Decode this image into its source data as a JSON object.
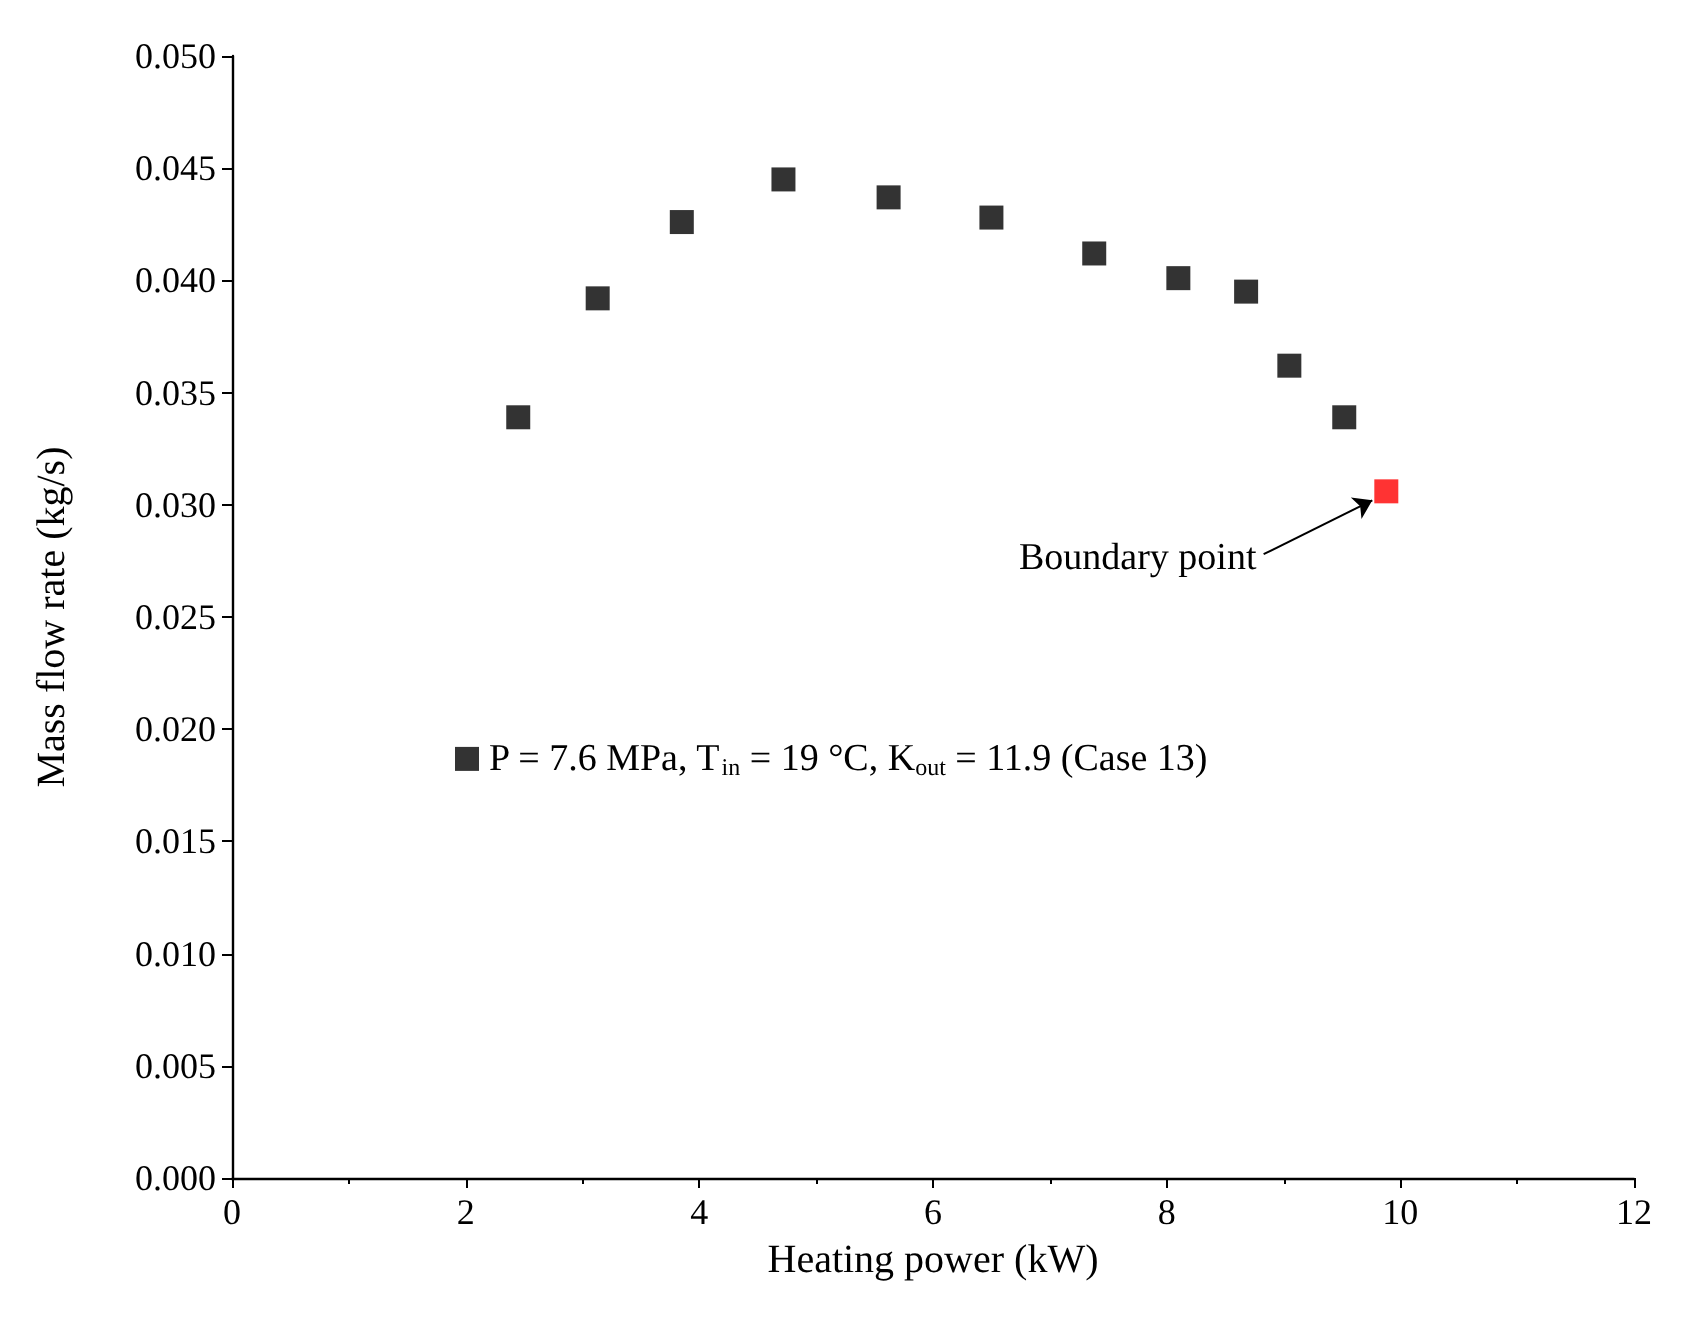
{
  "chart_data": {
    "type": "scatter",
    "xlabel": "Heating power (kW)",
    "ylabel": "Mass flow rate (kg/s)",
    "xlim": [
      0,
      12
    ],
    "xticks": [
      0,
      2,
      4,
      6,
      8,
      10,
      12
    ],
    "ylim": [
      0,
      0.05
    ],
    "yticks": [
      {
        "value": 0,
        "label": "0.000"
      },
      {
        "value": 0.005,
        "label": "0.005"
      },
      {
        "value": 0.01,
        "label": "0.010"
      },
      {
        "value": 0.015,
        "label": "0.015"
      },
      {
        "value": 0.02,
        "label": "0.020"
      },
      {
        "value": 0.025,
        "label": "0.025"
      },
      {
        "value": 0.03,
        "label": "0.030"
      },
      {
        "value": 0.035,
        "label": "0.035"
      },
      {
        "value": 0.04,
        "label": "0.040"
      },
      {
        "value": 0.045,
        "label": "0.045"
      },
      {
        "value": 0.05,
        "label": "0.050"
      }
    ],
    "series": [
      {
        "name": "P = 7.6 MPa, T$_{in}$ = 19 °C, K$_{out}$ = 11.9 (Case 13)",
        "color": "#000000",
        "marker": "square",
        "x": [
          2.45,
          3.13,
          3.85,
          4.72,
          5.62,
          6.5,
          7.38,
          8.1,
          8.68,
          9.05,
          9.52
        ],
        "values": [
          0.0339,
          0.0392,
          0.0426,
          0.0445,
          0.0437,
          0.0428,
          0.0412,
          0.0401,
          0.0395,
          0.0362,
          0.0339
        ]
      },
      {
        "color": "#ff0000",
        "marker": "square",
        "x": [
          9.88
        ],
        "values": [
          0.0306
        ]
      }
    ],
    "annotations": [
      {
        "text": "Boundary point",
        "x": 9.88,
        "y": 0.0306
      }
    ],
    "legend": "center",
    "grid": false
  }
}
